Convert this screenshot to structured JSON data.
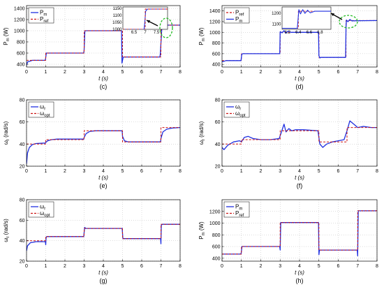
{
  "colors": {
    "measured": "#1f2fe0",
    "reference": "#cc1111",
    "highlight": "#22bb22",
    "arrow": "#000000",
    "frame": "#000000"
  },
  "chart_data": [
    {
      "id": "c",
      "type": "line",
      "panel_label": "(c)",
      "xlabel": "t (s)",
      "ylabel": "P_m (W)",
      "ylabel_main": "P",
      "ylabel_sub": "m",
      "ylabel_unit": " (W)",
      "xlim": [
        0,
        8
      ],
      "ylim": [
        350,
        1450
      ],
      "xticks": [
        0,
        1,
        2,
        3,
        4,
        5,
        6,
        7,
        8
      ],
      "yticks": [
        400,
        600,
        800,
        1000,
        1200,
        1400
      ],
      "legend_position": "top-left",
      "series": [
        {
          "name": "P_m",
          "main": "P",
          "sub": "m",
          "style": "solid",
          "colorKey": "measured",
          "x": [
            0,
            0.05,
            0.3,
            0.98,
            1.0,
            1.03,
            2.98,
            3.0,
            3.04,
            4.95,
            4.97,
            5.03,
            5.06,
            6.95,
            6.97,
            7.05,
            7.1,
            8.0
          ],
          "y": [
            380,
            440,
            470,
            470,
            520,
            600,
            600,
            660,
            1000,
            1000,
            420,
            520,
            530,
            530,
            600,
            1080,
            1100,
            1100
          ]
        },
        {
          "name": "P_ref",
          "main": "P",
          "sub": "ref",
          "style": "dashed",
          "colorKey": "reference",
          "x": [
            0,
            1,
            1,
            3,
            3,
            5,
            5,
            7,
            7,
            8
          ],
          "y": [
            470,
            470,
            600,
            600,
            1000,
            1000,
            530,
            530,
            1100,
            1100
          ]
        }
      ],
      "inset": {
        "xlim": [
          6.0,
          8.0
        ],
        "ylim": [
          1000,
          1160
        ],
        "xticks": [
          6.5,
          7,
          7.5
        ],
        "yticks": [
          1000,
          1050,
          1100,
          1150
        ],
        "series": [
          {
            "style": "solid",
            "colorKey": "measured",
            "x": [
              6.0,
              6.95,
              6.98,
              7.02,
              7.1,
              8.0
            ],
            "y": [
              1000,
              1000,
              1050,
              1130,
              1145,
              1145
            ]
          },
          {
            "style": "dashed",
            "colorKey": "reference",
            "x": [
              6.0,
              7.0,
              7.0,
              8.0
            ],
            "y": [
              1000,
              1000,
              1145,
              1145
            ]
          }
        ]
      }
    },
    {
      "id": "d",
      "type": "line",
      "panel_label": "(d)",
      "xlabel": "t (s)",
      "ylabel": "P_m (W)",
      "ylabel_main": "P",
      "ylabel_sub": "m",
      "ylabel_unit": " (W)",
      "xlim": [
        0,
        8
      ],
      "ylim": [
        350,
        1500
      ],
      "xticks": [
        0,
        1,
        2,
        3,
        4,
        5,
        6,
        7,
        8
      ],
      "yticks": [
        400,
        600,
        800,
        1000,
        1200,
        1400
      ],
      "legend_position": "top-left",
      "series": [
        {
          "name": "P_ref",
          "main": "P",
          "sub": "ref",
          "style": "dashed",
          "colorKey": "reference",
          "x": [
            0,
            1,
            1,
            3,
            3,
            5,
            5,
            6.4,
            6.4,
            8
          ],
          "y": [
            470,
            470,
            600,
            600,
            1000,
            1000,
            530,
            530,
            1220,
            1220
          ]
        },
        {
          "name": "P_m",
          "main": "P",
          "sub": "m",
          "style": "solid",
          "colorKey": "measured",
          "x": [
            0,
            0.05,
            0.2,
            0.98,
            1.02,
            1.08,
            2.98,
            3.0,
            3.1,
            3.2,
            3.3,
            3.4,
            3.55,
            4.98,
            5.0,
            5.05,
            5.1,
            6.38,
            6.4,
            6.42,
            6.5,
            6.6,
            6.7,
            8.0
          ],
          "y": [
            460,
            450,
            470,
            470,
            590,
            600,
            600,
            1010,
            990,
            1030,
            985,
            1020,
            1000,
            1000,
            560,
            520,
            530,
            530,
            1100,
            1230,
            1200,
            1240,
            1215,
            1220
          ]
        }
      ],
      "inset": {
        "xlim": [
          6.1,
          7.0
        ],
        "ylim": [
          1050,
          1260
        ],
        "xticks": [
          6.2,
          6.4,
          6.6,
          6.8
        ],
        "yticks": [
          1100,
          1200
        ],
        "series": [
          {
            "style": "dashed",
            "colorKey": "reference",
            "x": [
              6.1,
              6.4,
              6.4,
              7.0
            ],
            "y": [
              1060,
              1060,
              1220,
              1220
            ]
          },
          {
            "style": "solid",
            "colorKey": "measured",
            "x": [
              6.1,
              6.38,
              6.41,
              6.44,
              6.48,
              6.52,
              6.57,
              6.62,
              6.7,
              7.0
            ],
            "y": [
              1060,
              1060,
              1235,
              1195,
              1235,
              1200,
              1230,
              1205,
              1220,
              1220
            ]
          }
        ]
      }
    },
    {
      "id": "e",
      "type": "line",
      "panel_label": "(e)",
      "xlabel": "t (s)",
      "ylabel": "ω_r (rad/s)",
      "ylabel_main": "ω",
      "ylabel_sub": "r",
      "ylabel_unit": " (rad/s)",
      "xlim": [
        0,
        8
      ],
      "ylim": [
        20,
        80
      ],
      "xticks": [
        0,
        1,
        2,
        3,
        4,
        5,
        6,
        7,
        8
      ],
      "yticks": [
        20,
        40,
        60,
        80
      ],
      "legend_position": "top-left",
      "series": [
        {
          "name": "ω_r",
          "main": "ω",
          "sub": "r",
          "style": "solid",
          "colorKey": "measured",
          "x": [
            0,
            0.05,
            0.15,
            0.3,
            0.5,
            0.98,
            1.0,
            1.1,
            1.3,
            1.6,
            2.98,
            3.0,
            3.1,
            3.3,
            3.6,
            4.98,
            5.0,
            5.1,
            5.3,
            6.98,
            7.0,
            7.1,
            7.3,
            7.6,
            8.0
          ],
          "y": [
            22,
            32,
            37,
            39.5,
            40.5,
            41,
            41.5,
            43,
            44,
            44.5,
            44.5,
            46,
            49.5,
            51.5,
            52,
            52,
            47,
            43,
            42,
            42,
            45,
            51,
            53.5,
            54.5,
            55
          ]
        },
        {
          "name": "ω_opt",
          "main": "ω",
          "sub": "opt",
          "style": "dashed",
          "colorKey": "reference",
          "x": [
            0,
            1,
            1,
            3,
            3,
            5,
            5,
            7,
            7,
            8
          ],
          "y": [
            40,
            40,
            44,
            44,
            52,
            52,
            42,
            42,
            55,
            55
          ]
        }
      ]
    },
    {
      "id": "f",
      "type": "line",
      "panel_label": "(f)",
      "xlabel": "t (s)",
      "ylabel": "ω_r (rad/s)",
      "ylabel_main": "ω",
      "ylabel_sub": "r",
      "ylabel_unit": " (rad/s)",
      "xlim": [
        0,
        8
      ],
      "ylim": [
        20,
        80
      ],
      "xticks": [
        0,
        1,
        2,
        3,
        4,
        5,
        6,
        7,
        8
      ],
      "yticks": [
        20,
        40,
        60,
        80
      ],
      "legend_position": "top-left",
      "series": [
        {
          "name": "ω_r",
          "main": "ω",
          "sub": "r",
          "style": "solid",
          "colorKey": "measured",
          "x": [
            0,
            0.1,
            0.3,
            0.6,
            0.9,
            1.0,
            1.15,
            1.35,
            1.6,
            2.0,
            2.5,
            2.95,
            3.05,
            3.2,
            3.3,
            3.45,
            3.6,
            3.8,
            4.2,
            4.95,
            5.05,
            5.2,
            5.4,
            5.7,
            6.0,
            6.3,
            6.45,
            6.6,
            6.8,
            7.0,
            7.3,
            7.7,
            8.0
          ],
          "y": [
            37,
            35,
            39,
            42,
            43,
            42,
            46,
            47,
            45,
            44,
            44,
            45,
            50,
            58,
            51,
            54,
            52,
            53,
            53,
            52,
            40,
            37,
            40,
            42,
            43,
            44,
            52,
            61,
            58,
            55,
            56,
            55,
            55
          ]
        },
        {
          "name": "ω_opt",
          "main": "ω",
          "sub": "opt",
          "style": "dashed",
          "colorKey": "reference",
          "x": [
            0,
            1,
            1,
            3,
            3,
            5,
            5,
            6.45,
            6.45,
            8
          ],
          "y": [
            40,
            40,
            44,
            44,
            52,
            52,
            42,
            42,
            55,
            55
          ]
        }
      ]
    },
    {
      "id": "g",
      "type": "line",
      "panel_label": "(g)",
      "xlabel": "t (s)",
      "ylabel": "ω_r (rad/s)",
      "ylabel_main": "ω",
      "ylabel_sub": "r",
      "ylabel_unit": " (rad/s)",
      "xlim": [
        0,
        8
      ],
      "ylim": [
        20,
        80
      ],
      "xticks": [
        0,
        1,
        2,
        3,
        4,
        5,
        6,
        7,
        8
      ],
      "yticks": [
        20,
        40,
        60,
        80
      ],
      "legend_position": "top-left",
      "series": [
        {
          "name": "ω_r",
          "main": "ω",
          "sub": "r",
          "style": "solid",
          "colorKey": "measured",
          "x": [
            0,
            0.05,
            0.2,
            0.5,
            0.98,
            1.0,
            1.02,
            1.05,
            1.15,
            2.98,
            3.0,
            3.03,
            3.08,
            4.98,
            5.0,
            5.02,
            5.06,
            6.98,
            7.0,
            7.02,
            7.06,
            8.0
          ],
          "y": [
            30,
            35,
            38,
            39,
            39,
            36,
            43,
            44,
            44,
            44,
            48,
            53,
            52,
            52,
            47,
            42,
            42,
            42,
            37,
            55,
            56,
            56
          ]
        },
        {
          "name": "ω_opt",
          "main": "ω",
          "sub": "opt",
          "style": "dashed",
          "colorKey": "reference",
          "x": [
            0,
            1,
            1,
            3,
            3,
            5,
            5,
            7,
            7,
            8
          ],
          "y": [
            40,
            40,
            44,
            44,
            52,
            52,
            42,
            42,
            56,
            56
          ]
        }
      ]
    },
    {
      "id": "h",
      "type": "line",
      "panel_label": "(h)",
      "xlabel": "t (s)",
      "ylabel": "P_m (W)",
      "ylabel_main": "P",
      "ylabel_sub": "m",
      "ylabel_unit": " (W)",
      "xlim": [
        0,
        8
      ],
      "ylim": [
        350,
        1400
      ],
      "xticks": [
        0,
        1,
        2,
        3,
        4,
        5,
        6,
        7,
        8
      ],
      "yticks": [
        400,
        600,
        800,
        1000,
        1200
      ],
      "legend_position": "top-left",
      "series": [
        {
          "name": "P_m",
          "main": "P",
          "sub": "m",
          "style": "solid",
          "colorKey": "measured",
          "x": [
            0,
            0.05,
            0.98,
            1.0,
            1.03,
            2.98,
            3.0,
            3.03,
            4.98,
            5.0,
            5.03,
            6.98,
            7.0,
            7.03,
            8.0
          ],
          "y": [
            470,
            470,
            470,
            520,
            600,
            600,
            540,
            1010,
            1010,
            460,
            540,
            540,
            440,
            1210,
            1210
          ]
        },
        {
          "name": "P_ref",
          "main": "P",
          "sub": "ref",
          "style": "dashed",
          "colorKey": "reference",
          "x": [
            0,
            1,
            1,
            3,
            3,
            5,
            5,
            7,
            7,
            8
          ],
          "y": [
            470,
            470,
            600,
            600,
            1010,
            1010,
            540,
            540,
            1210,
            1210
          ]
        }
      ]
    }
  ]
}
